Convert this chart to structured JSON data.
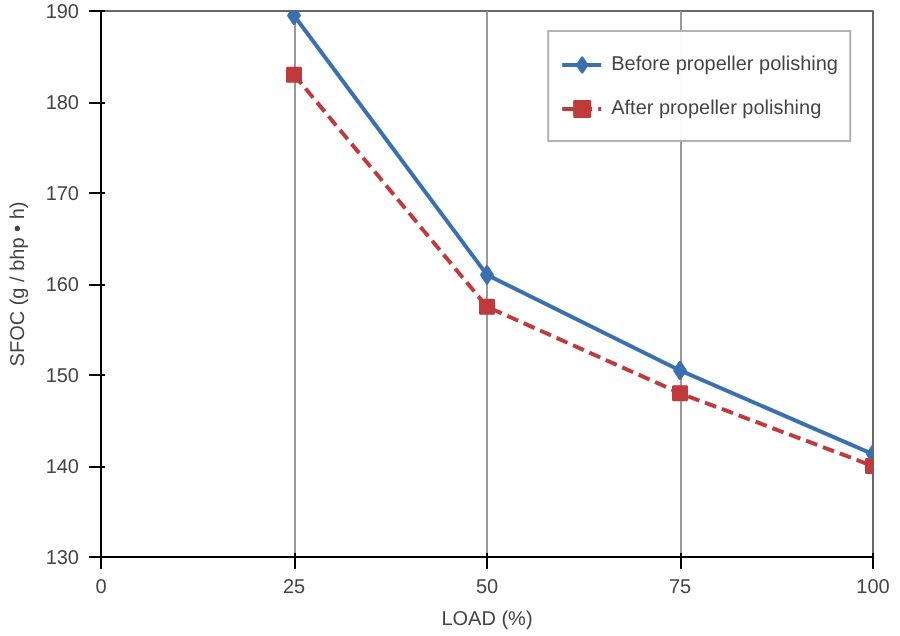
{
  "chart_data": {
    "type": "line",
    "xlabel": "LOAD (%)",
    "ylabel": "SFOC (g / bhp • h)",
    "x": [
      25,
      50,
      75,
      100
    ],
    "series": [
      {
        "name": "Before propeller polishing",
        "color": "#3a6fb0",
        "values": [
          189.5,
          161,
          150.5,
          141.3
        ],
        "marker": "diamond",
        "line_style": "solid"
      },
      {
        "name": "After propeller polishing",
        "color": "#c0393b",
        "values": [
          183,
          157.5,
          148,
          140
        ],
        "marker": "square",
        "line_style": "dashed"
      }
    ],
    "xlim": [
      0,
      100
    ],
    "xticks": [
      0,
      25,
      50,
      75,
      100
    ],
    "ylim": [
      130,
      190
    ],
    "yticks": [
      130,
      140,
      150,
      160,
      170,
      180,
      190
    ],
    "grid": "x",
    "legend": "top right"
  }
}
